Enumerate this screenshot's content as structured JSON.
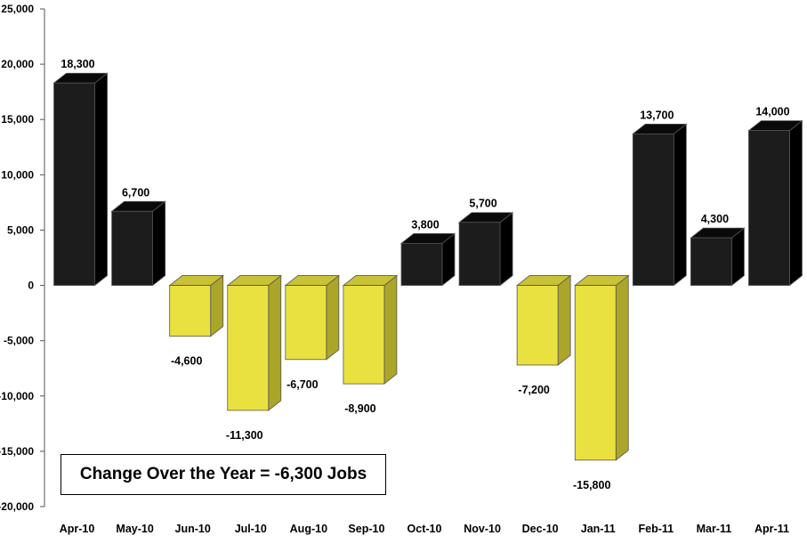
{
  "chart_data": {
    "type": "bar",
    "title": "",
    "xlabel": "",
    "ylabel": "",
    "categories": [
      "Apr-10",
      "May-10",
      "Jun-10",
      "Jul-10",
      "Aug-10",
      "Sep-10",
      "Oct-10",
      "Nov-10",
      "Dec-10",
      "Jan-11",
      "Feb-11",
      "Mar-11",
      "Apr-11"
    ],
    "values": [
      18300,
      6700,
      -4600,
      -11300,
      -6700,
      -8900,
      3800,
      5700,
      -7200,
      -15800,
      13700,
      4300,
      14000
    ],
    "data_labels": [
      "18,300",
      "6,700",
      "-4,600",
      "-11,300",
      "-6,700",
      "-8,900",
      "3,800",
      "5,700",
      "-7,200",
      "-15,800",
      "13,700",
      "4,300",
      "14,000"
    ],
    "ylim": [
      -20000,
      25000
    ],
    "yticks": [
      25000,
      20000,
      15000,
      10000,
      5000,
      0,
      -5000,
      -10000,
      -15000,
      -20000
    ],
    "ytick_labels": [
      "25,000",
      "20,000",
      "15,000",
      "10,000",
      "5,000",
      "0",
      "-5,000",
      "-10,000",
      "-15,000",
      "-20,000"
    ],
    "grid": false,
    "style": "3d-bar",
    "colors": {
      "positive": "#1c1c1c",
      "positive_top": "#0a0a0a",
      "positive_side": "#000000",
      "negative": "#e9e13f",
      "negative_top": "#c8c236",
      "negative_side": "#aba52a",
      "edge": "#555555"
    },
    "annotation": "Change Over the Year = -6,300 Jobs"
  }
}
